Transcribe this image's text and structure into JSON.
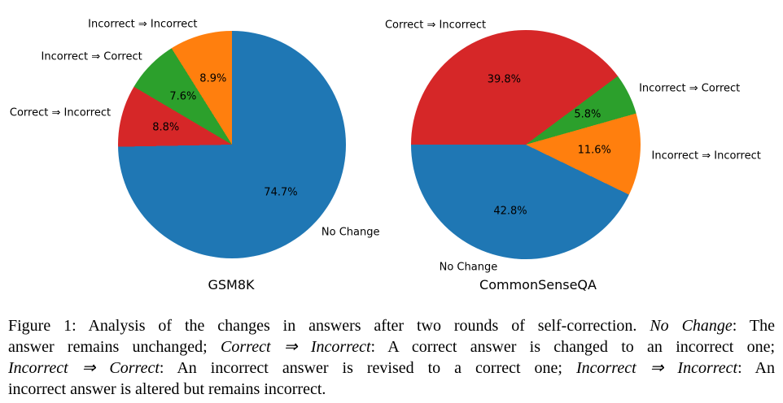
{
  "chart_data": [
    {
      "type": "pie",
      "title": "GSM8K",
      "start_angle_css": 0,
      "legend_position": "labels-around-pie",
      "slices": [
        {
          "label": "No Change",
          "pct": 74.7,
          "pct_label": "74.7%",
          "color": "#1f77b4"
        },
        {
          "label": "Correct ⇒ Incorrect",
          "pct": 8.8,
          "pct_label": "8.8%",
          "color": "#d62728"
        },
        {
          "label": "Incorrect ⇒ Correct",
          "pct": 7.6,
          "pct_label": "7.6%",
          "color": "#2ca02c"
        },
        {
          "label": "Incorrect ⇒ Incorrect",
          "pct": 8.9,
          "pct_label": "8.9%",
          "color": "#ff7f0e"
        }
      ]
    },
    {
      "type": "pie",
      "title": "CommonSenseQA",
      "start_angle_css": 270,
      "legend_position": "labels-around-pie",
      "slices": [
        {
          "label": "Correct ⇒ Incorrect",
          "pct": 39.8,
          "pct_label": "39.8%",
          "color": "#d62728"
        },
        {
          "label": "Incorrect ⇒ Correct",
          "pct": 5.8,
          "pct_label": "5.8%",
          "color": "#2ca02c"
        },
        {
          "label": "Incorrect ⇒ Incorrect",
          "pct": 11.6,
          "pct_label": "11.6%",
          "color": "#ff7f0e"
        },
        {
          "label": "No Change",
          "pct": 42.8,
          "pct_label": "42.8%",
          "color": "#1f77b4"
        }
      ]
    }
  ],
  "caption": {
    "lines": [
      {
        "segments": [
          {
            "text": "Figure 1: Analysis of the changes in answers after two rounds of self-correction. "
          },
          {
            "text": "No Change",
            "italic": true
          },
          {
            "text": ": The"
          }
        ]
      },
      {
        "segments": [
          {
            "text": "answer remains unchanged; "
          },
          {
            "text": "Correct ⇒ Incorrect",
            "italic": true
          },
          {
            "text": ": A correct answer is changed to an incorrect one;"
          }
        ]
      },
      {
        "segments": [
          {
            "text": "Incorrect ⇒ Correct",
            "italic": true
          },
          {
            "text": ": An incorrect answer is revised to a correct one; "
          },
          {
            "text": "Incorrect ⇒ Incorrect",
            "italic": true
          },
          {
            "text": ": An"
          }
        ]
      },
      {
        "segments": [
          {
            "text": "incorrect answer is altered but remains incorrect."
          }
        ]
      }
    ]
  }
}
